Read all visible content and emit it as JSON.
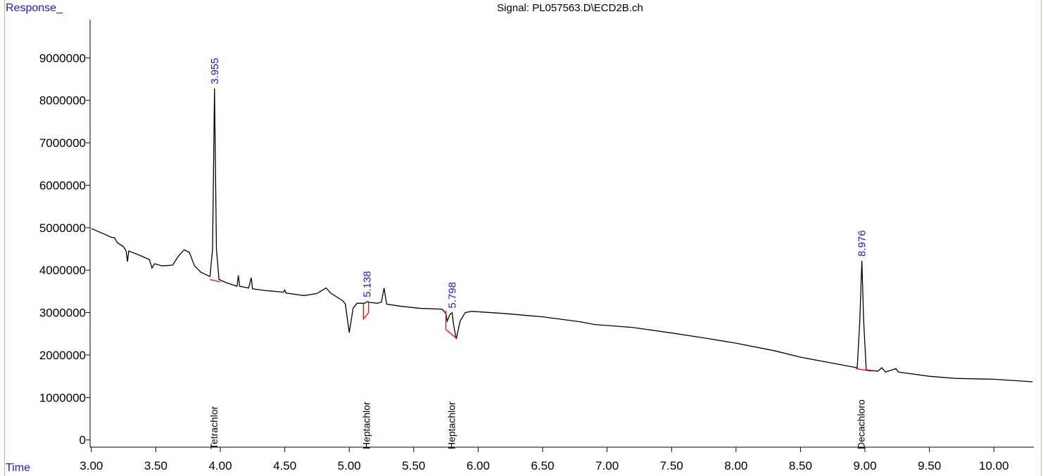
{
  "chart_data": {
    "type": "line",
    "title": "Signal: PL057563.D\\ECD2B.ch",
    "y_label": "Response_",
    "x_label": "Time",
    "xlim": [
      2.99,
      10.31
    ],
    "ylim": [
      -170000,
      9900000
    ],
    "xticks": [
      {
        "value": 3,
        "label": "3.00"
      },
      {
        "value": 3.5,
        "label": "3.50"
      },
      {
        "value": 4,
        "label": "4.00"
      },
      {
        "value": 4.5,
        "label": "4.50"
      },
      {
        "value": 5,
        "label": "5.00"
      },
      {
        "value": 5.5,
        "label": "5.50"
      },
      {
        "value": 6,
        "label": "6.00"
      },
      {
        "value": 6.5,
        "label": "6.50"
      },
      {
        "value": 7,
        "label": "7.00"
      },
      {
        "value": 7.5,
        "label": "7.50"
      },
      {
        "value": 8,
        "label": "8.00"
      },
      {
        "value": 8.5,
        "label": "8.50"
      },
      {
        "value": 9,
        "label": "9.00"
      },
      {
        "value": 9.5,
        "label": "9.50"
      },
      {
        "value": 10,
        "label": "10.00"
      }
    ],
    "yticks": [
      0,
      1000000,
      2000000,
      3000000,
      4000000,
      5000000,
      6000000,
      7000000,
      8000000,
      9000000
    ],
    "series": [
      {
        "color": "#000000",
        "x": [
          3.0,
          3.1,
          3.15,
          3.18,
          3.2,
          3.25,
          3.27,
          3.28,
          3.29,
          3.35,
          3.45,
          3.47,
          3.49,
          3.55,
          3.63,
          3.68,
          3.72,
          3.76,
          3.8,
          3.85,
          3.92,
          3.94,
          3.955,
          3.97,
          3.99,
          4.05,
          4.13,
          4.14,
          4.15,
          4.22,
          4.24,
          4.25,
          4.35,
          4.49,
          4.5,
          4.51,
          4.65,
          4.75,
          4.82,
          4.86,
          4.95,
          4.97,
          5.0,
          5.03,
          5.06,
          5.12,
          5.14,
          5.16,
          5.22,
          5.25,
          5.27,
          5.29,
          5.4,
          5.55,
          5.72,
          5.75,
          5.76,
          5.78,
          5.798,
          5.81,
          5.83,
          5.86,
          5.9,
          5.95,
          6.2,
          6.5,
          6.8,
          6.9,
          7.2,
          7.5,
          7.8,
          8.0,
          8.3,
          8.5,
          8.8,
          8.94,
          8.96,
          8.976,
          8.99,
          9.01,
          9.1,
          9.13,
          9.16,
          9.24,
          9.26,
          9.5,
          9.7,
          10.0,
          10.3
        ],
        "values": [
          4980000,
          4850000,
          4780000,
          4760000,
          4650000,
          4550000,
          4450000,
          4200000,
          4450000,
          4380000,
          4250000,
          4050000,
          4150000,
          4100000,
          4120000,
          4350000,
          4480000,
          4420000,
          4100000,
          3950000,
          3850000,
          4500000,
          8280000,
          4500000,
          3780000,
          3700000,
          3620000,
          3880000,
          3620000,
          3580000,
          3820000,
          3560000,
          3520000,
          3480000,
          3530000,
          3460000,
          3400000,
          3450000,
          3580000,
          3450000,
          3280000,
          3200000,
          2530000,
          3100000,
          3220000,
          3220000,
          3260000,
          3240000,
          3220000,
          3250000,
          3580000,
          3200000,
          3150000,
          3100000,
          3080000,
          2980000,
          2800000,
          2950000,
          3000000,
          2700000,
          2380000,
          2800000,
          3000000,
          3030000,
          2980000,
          2900000,
          2780000,
          2720000,
          2650000,
          2520000,
          2380000,
          2280000,
          2100000,
          1950000,
          1780000,
          1700000,
          2800000,
          4220000,
          2800000,
          1650000,
          1620000,
          1700000,
          1600000,
          1680000,
          1600000,
          1500000,
          1450000,
          1430000,
          1370000
        ]
      },
      {
        "color": "#ff0000",
        "x": [
          3.92,
          4.0,
          null,
          5.11,
          5.11,
          5.15,
          5.15,
          null,
          5.75,
          5.75,
          5.83,
          null,
          8.93,
          9.05
        ],
        "values": [
          3780000,
          3720000,
          null,
          3220000,
          2850000,
          3000000,
          3240000,
          null,
          3050000,
          2600000,
          2400000,
          null,
          1680000,
          1620000
        ]
      }
    ],
    "peaks": [
      {
        "rt": 3.955,
        "name": "Tetrachlor"
      },
      {
        "rt": 5.138,
        "name": "Heptachlor"
      },
      {
        "rt": 5.798,
        "name": "Heptachlor"
      },
      {
        "rt": 8.976,
        "name": "Decachloro"
      }
    ]
  }
}
